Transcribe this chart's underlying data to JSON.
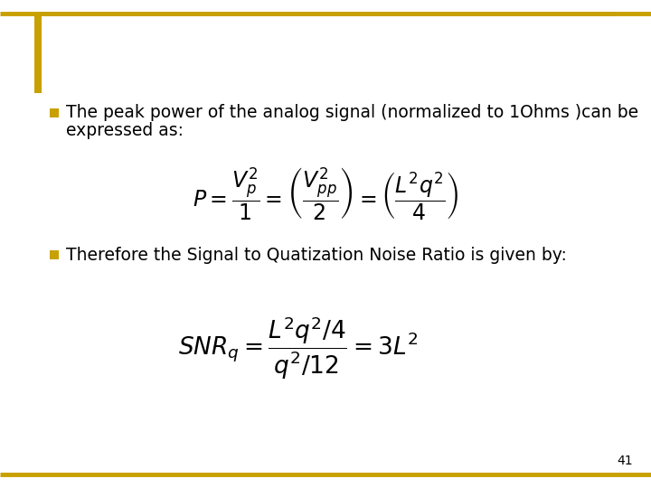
{
  "background_color": "#ffffff",
  "border_color": "#C8A000",
  "slide_number": "41",
  "bullet_color": "#C8A000",
  "text_color": "#000000",
  "bullet1_line1": "The peak power of the analog signal (normalized to 1Ohms )can be",
  "bullet1_line2": "expressed as:",
  "formula1": "$P=\\dfrac{V_{p}^{2}}{1}=\\left(\\dfrac{V_{pp}^{2}}{2}\\right)=\\left(\\dfrac{L^{2}q^{2}}{4}\\right)$",
  "bullet2_text": "Therefore the Signal to Quatization Noise Ratio is given by:",
  "formula2": "$\\mathit{SNR}_{q}=\\dfrac{L^{2}q^{2}/4}{q^{2}/12}=3L^{2}$",
  "font_size_text": 13.5,
  "font_size_formula1": 17,
  "font_size_formula2": 19,
  "font_size_slide_num": 10
}
